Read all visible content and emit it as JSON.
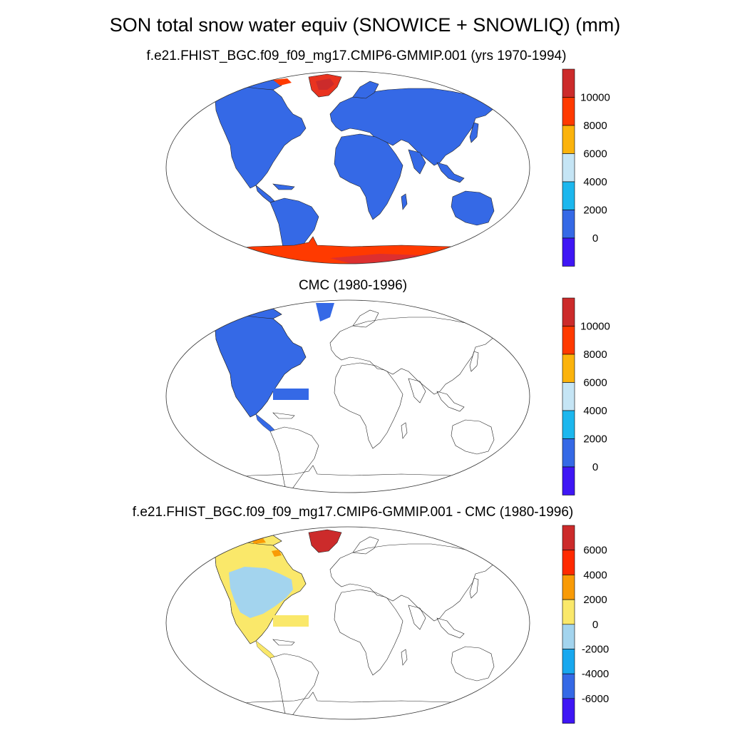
{
  "title": "SON total snow water equiv (SNOWICE + SNOWLIQ) (mm)",
  "panels": [
    {
      "subtitle": "f.e21.FHIST_BGC.f09_f09_mg17.CMIP6-GMMIP.001 (yrs 1970-1994)",
      "colorbar": {
        "labels": [
          "10000",
          "8000",
          "6000",
          "4000",
          "2000",
          "0"
        ],
        "colors": [
          "#cc2b2b",
          "#ff3a00",
          "#fbb30c",
          "#c5e5f5",
          "#1cb7ee",
          "#3569e6",
          "#3f16f5"
        ]
      },
      "fill": {
        "land": "#3569e6",
        "greenland": "#e9331f",
        "antarctica": "#ff3a00",
        "antarctica_core": "#dd2f2f"
      }
    },
    {
      "subtitle": "CMC (1980-1996)",
      "colorbar": {
        "labels": [
          "10000",
          "8000",
          "6000",
          "4000",
          "2000",
          "0"
        ],
        "colors": [
          "#cc2b2b",
          "#ff3a00",
          "#fbb30c",
          "#c5e5f5",
          "#1cb7ee",
          "#3569e6",
          "#3f16f5"
        ]
      },
      "fill": {
        "north_america": "#3569e6"
      }
    },
    {
      "subtitle": "f.e21.FHIST_BGC.f09_f09_mg17.CMIP6-GMMIP.001 - CMC (1980-1996)",
      "colorbar": {
        "labels": [
          "6000",
          "4000",
          "2000",
          "0",
          "-2000",
          "-4000",
          "-6000"
        ],
        "colors": [
          "#cc2b2b",
          "#ff2a00",
          "#f99b06",
          "#fae86a",
          "#a3d4ee",
          "#18a8ef",
          "#3569e6",
          "#3f16f5"
        ]
      },
      "fill": {
        "north_america_pos": "#fae86a",
        "north_america_neg": "#a3d4ee",
        "greenland": "#cc2b2b",
        "arctic_bits": "#f99b06"
      }
    }
  ]
}
